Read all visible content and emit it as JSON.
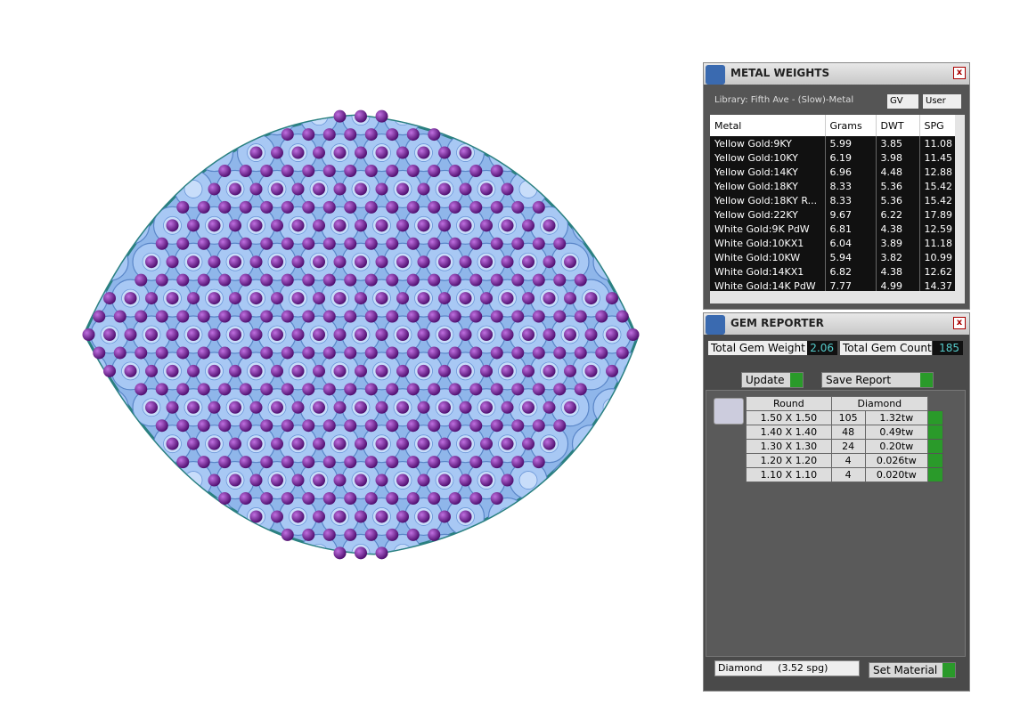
{
  "metal_weights": {
    "title": "METAL WEIGHTS",
    "library": "Library: Fifth Ave - (Slow)-Metal",
    "gv": "GV",
    "user": "User",
    "columns": [
      "Metal",
      "Grams",
      "DWT",
      "SPG"
    ],
    "rows": [
      [
        "Yellow Gold:9KY",
        "5.99",
        "3.85",
        "11.08"
      ],
      [
        "Yellow Gold:10KY",
        "6.19",
        "3.98",
        "11.45"
      ],
      [
        "Yellow Gold:14KY",
        "6.96",
        "4.48",
        "12.88"
      ],
      [
        "Yellow Gold:18KY",
        "8.33",
        "5.36",
        "15.42"
      ],
      [
        "Yellow Gold:18KY R...",
        "8.33",
        "5.36",
        "15.42"
      ],
      [
        "Yellow Gold:22KY",
        "9.67",
        "6.22",
        "17.89"
      ],
      [
        "White Gold:9K PdW",
        "6.81",
        "4.38",
        "12.59"
      ],
      [
        "White Gold:10KX1",
        "6.04",
        "3.89",
        "11.18"
      ],
      [
        "White Gold:10KW",
        "5.94",
        "3.82",
        "10.99"
      ],
      [
        "White Gold:14KX1",
        "6.82",
        "4.38",
        "12.62"
      ],
      [
        "White Gold:14K PdW",
        "7.77",
        "4.99",
        "14.37"
      ]
    ]
  },
  "gem_reporter": {
    "title": "GEM REPORTER",
    "total_weight_label": "Total Gem Weight",
    "total_weight": "2.06",
    "total_count_label": "Total Gem Count",
    "total_count": "185",
    "update": "Update",
    "save_report": "Save Report",
    "shape": "Round",
    "material": "Diamond",
    "rows": [
      [
        "1.50 X 1.50",
        "105",
        "1.32tw"
      ],
      [
        "1.40 X 1.40",
        "48",
        "0.49tw"
      ],
      [
        "1.30 X 1.30",
        "24",
        "0.20tw"
      ],
      [
        "1.20 X 1.20",
        "4",
        "0.026tw"
      ],
      [
        "1.10 X 1.10",
        "4",
        "0.020tw"
      ]
    ],
    "material_select": "Diamond     (3.52 spg)",
    "set_material": "Set Material"
  }
}
